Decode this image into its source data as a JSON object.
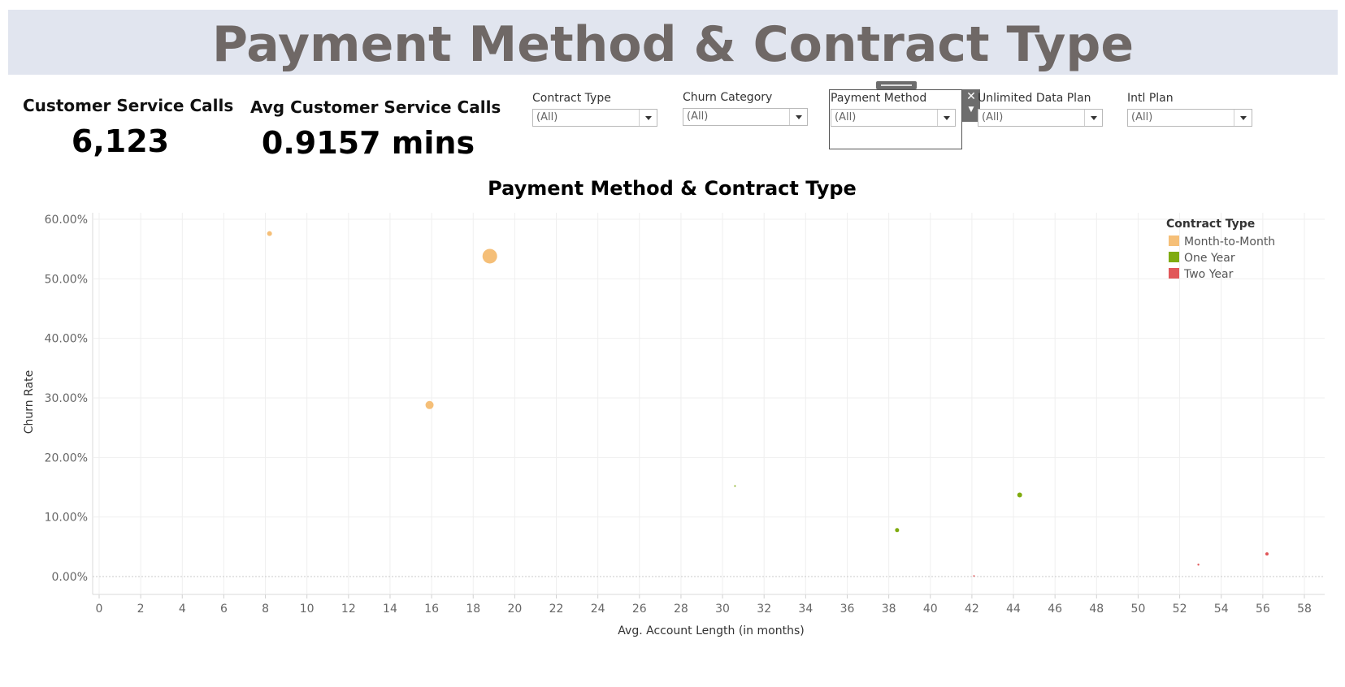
{
  "header": {
    "title": "Payment Method & Contract Type"
  },
  "kpis": [
    {
      "label": "Customer Service Calls",
      "value": "6,123"
    },
    {
      "label": "Avg Customer Service Calls",
      "value": "0.9157 mins"
    }
  ],
  "filters": [
    {
      "label": "Contract Type",
      "value": "(All)"
    },
    {
      "label": "Churn Category",
      "value": "(All)"
    },
    {
      "label": "Payment Method",
      "value": "(All)"
    },
    {
      "label": "Unlimited Data Plan",
      "value": "(All)"
    },
    {
      "label": "Intl Plan",
      "value": "(All)"
    }
  ],
  "icons": {
    "close": "close-icon",
    "dropdown": "chevron-down-icon",
    "grip": "drag-handle-icon"
  },
  "chart_data": {
    "type": "scatter",
    "title": "Payment Method & Contract Type",
    "xlabel": "Avg. Account Length (in months)",
    "ylabel": "Churn Rate",
    "xlim": [
      0,
      58
    ],
    "ylim": [
      0,
      60
    ],
    "x_ticks": [
      0,
      2,
      4,
      6,
      8,
      10,
      12,
      14,
      16,
      18,
      20,
      22,
      24,
      26,
      28,
      30,
      32,
      34,
      36,
      38,
      40,
      42,
      44,
      46,
      48,
      50,
      52,
      54,
      56,
      58
    ],
    "y_ticks": [
      0,
      10,
      20,
      30,
      40,
      50,
      60
    ],
    "y_tick_labels": [
      "0.00%",
      "10.00%",
      "20.00%",
      "30.00%",
      "40.00%",
      "50.00%",
      "60.00%"
    ],
    "grid": true,
    "legend": {
      "title": "Contract Type",
      "placement": "top-right",
      "items": [
        {
          "name": "Month-to-Month",
          "color": "#f5bf78"
        },
        {
          "name": "One Year",
          "color": "#7fab0f"
        },
        {
          "name": "Two Year",
          "color": "#e15759"
        }
      ]
    },
    "series": [
      {
        "name": "Month-to-Month",
        "color": "#f5bf78",
        "points": [
          {
            "x": 8.2,
            "y": 57.6,
            "r": 3
          },
          {
            "x": 18.8,
            "y": 53.8,
            "r": 9
          },
          {
            "x": 15.9,
            "y": 28.8,
            "r": 5
          }
        ]
      },
      {
        "name": "One Year",
        "color": "#7fab0f",
        "points": [
          {
            "x": 30.6,
            "y": 15.2,
            "r": 1
          },
          {
            "x": 38.4,
            "y": 7.8,
            "r": 2.5
          },
          {
            "x": 44.3,
            "y": 13.7,
            "r": 3
          }
        ]
      },
      {
        "name": "Two Year",
        "color": "#e15759",
        "points": [
          {
            "x": 42.1,
            "y": 0.1,
            "r": 1
          },
          {
            "x": 52.9,
            "y": 2.0,
            "r": 1.2
          },
          {
            "x": 56.2,
            "y": 3.8,
            "r": 2
          }
        ]
      }
    ]
  }
}
